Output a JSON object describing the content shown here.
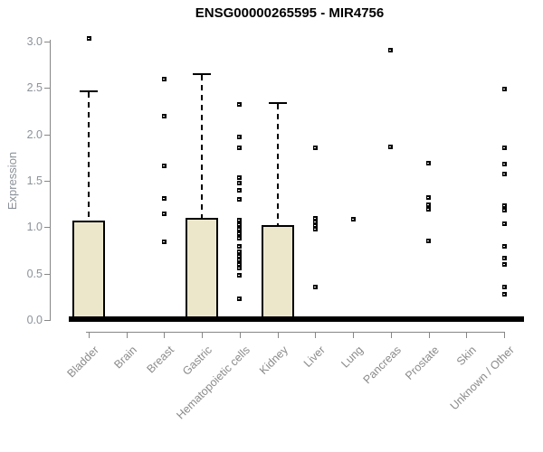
{
  "chart_data": {
    "type": "boxplot",
    "title": "ENSG00000265595 - MIR4756",
    "xlabel": "",
    "ylabel": "Expression",
    "ylim": [
      0,
      3.05
    ],
    "yticks": [
      0.0,
      0.5,
      1.0,
      1.5,
      2.0,
      2.5,
      3.0
    ],
    "ytick_labels": [
      "0.0",
      "0.5",
      "1.0",
      "1.5",
      "2.0",
      "2.5",
      "3.0"
    ],
    "grid": false,
    "legend": "none",
    "box_fill_color": "#ECE7CB",
    "box_border_color": "#000000",
    "axis_color": "#878787",
    "tick_label_color": "#8b9299",
    "category_label_color": "#8b8b8b",
    "categories": [
      "Bladder",
      "Brain",
      "Breast",
      "Gastric",
      "Hematopoietic cells",
      "Kidney",
      "Liver",
      "Lung",
      "Pancreas",
      "Prostate",
      "Skin",
      "Unknown / Other"
    ],
    "series": [
      {
        "category": "Bladder",
        "median": 0.01,
        "q1": 0.0,
        "q3": 1.07,
        "whisker_low": 0.0,
        "whisker_high": 2.45,
        "outliers": [
          3.03
        ]
      },
      {
        "category": "Brain",
        "median": 0.01,
        "q1": 0.0,
        "q3": 0.0,
        "whisker_low": 0.0,
        "whisker_high": 0.0,
        "outliers": []
      },
      {
        "category": "Breast",
        "median": 0.01,
        "q1": 0.0,
        "q3": 0.0,
        "whisker_low": 0.0,
        "whisker_high": 0.0,
        "outliers": [
          2.6,
          2.2,
          1.66,
          1.31,
          1.14,
          0.84
        ]
      },
      {
        "category": "Gastric",
        "median": 0.01,
        "q1": 0.0,
        "q3": 1.1,
        "whisker_low": 0.0,
        "whisker_high": 2.64,
        "outliers": []
      },
      {
        "category": "Hematopoietic cells",
        "median": 0.01,
        "q1": 0.0,
        "q3": 0.0,
        "whisker_low": 0.0,
        "whisker_high": 0.0,
        "outliers": [
          2.32,
          1.97,
          1.86,
          1.53,
          1.48,
          1.4,
          1.3,
          1.08,
          1.03,
          0.98,
          0.93,
          0.88,
          0.79,
          0.74,
          0.69,
          0.65,
          0.6,
          0.56,
          0.48,
          0.23
        ]
      },
      {
        "category": "Kidney",
        "median": 0.01,
        "q1": 0.0,
        "q3": 1.02,
        "whisker_low": 0.0,
        "whisker_high": 2.33,
        "outliers": []
      },
      {
        "category": "Liver",
        "median": 0.01,
        "q1": 0.0,
        "q3": 0.0,
        "whisker_low": 0.0,
        "whisker_high": 0.0,
        "outliers": [
          1.86,
          1.1,
          1.06,
          1.02,
          0.98,
          0.36
        ]
      },
      {
        "category": "Lung",
        "median": 0.01,
        "q1": 0.0,
        "q3": 0.0,
        "whisker_low": 0.0,
        "whisker_high": 0.0,
        "outliers": [
          1.09
        ]
      },
      {
        "category": "Pancreas",
        "median": 0.01,
        "q1": 0.0,
        "q3": 0.0,
        "whisker_low": 0.0,
        "whisker_high": 0.0,
        "outliers": [
          2.91,
          1.87
        ]
      },
      {
        "category": "Prostate",
        "median": 0.01,
        "q1": 0.0,
        "q3": 0.0,
        "whisker_low": 0.0,
        "whisker_high": 0.0,
        "outliers": [
          1.69,
          1.32,
          1.24,
          1.19,
          0.85
        ]
      },
      {
        "category": "Skin",
        "median": 0.01,
        "q1": 0.0,
        "q3": 0.0,
        "whisker_low": 0.0,
        "whisker_high": 0.0,
        "outliers": []
      },
      {
        "category": "Unknown / Other",
        "median": 0.01,
        "q1": 0.0,
        "q3": 0.0,
        "whisker_low": 0.0,
        "whisker_high": 0.0,
        "outliers": [
          2.49,
          1.86,
          1.68,
          1.57,
          1.23,
          1.18,
          1.04,
          0.79,
          0.67,
          0.6,
          0.36,
          0.28
        ]
      }
    ]
  }
}
